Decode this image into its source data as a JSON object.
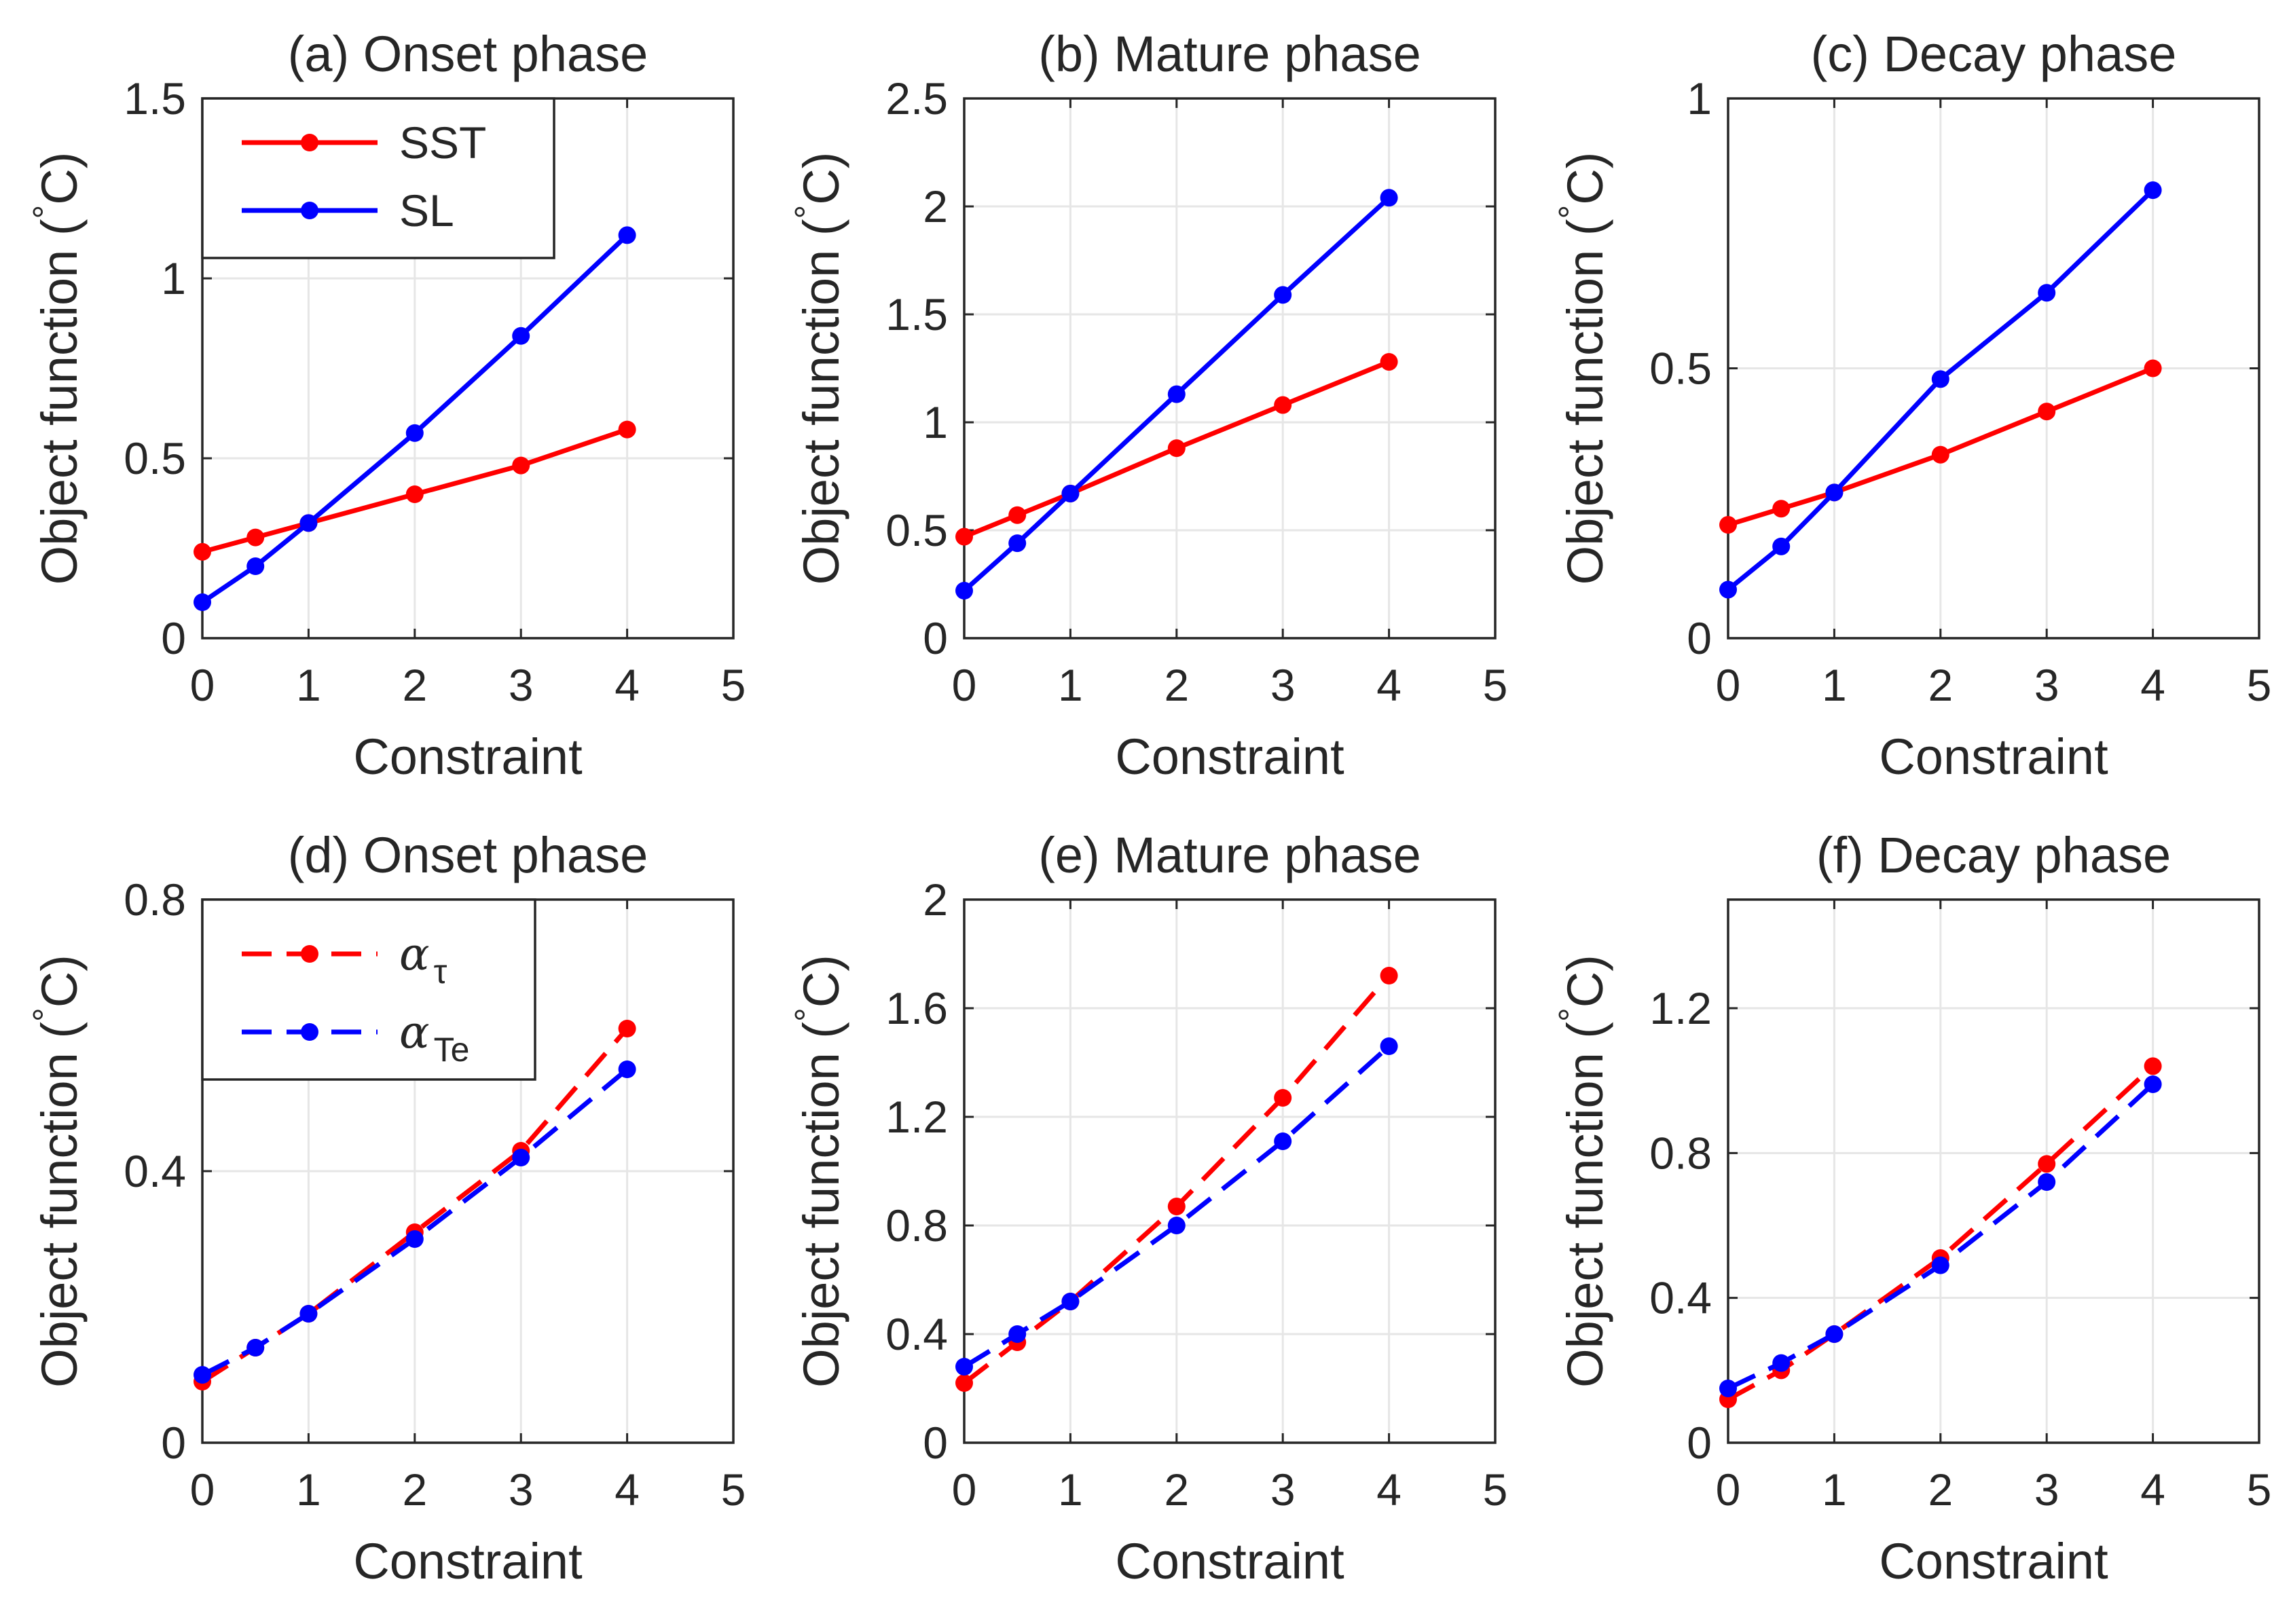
{
  "figure": {
    "colors": {
      "red": "#ff0000",
      "blue": "#0000ff",
      "axis": "#262626",
      "grid": "#e6e6e6"
    }
  },
  "chart_data": [
    {
      "type": "line",
      "title": "(a) Onset phase",
      "xlabel": "Constraint",
      "ylabel": "Object function (°C)",
      "ylabel_parts": {
        "text": "Object function (",
        "unit_sup": "°",
        "unit": "C)"
      },
      "xlim": [
        0,
        5
      ],
      "ylim": [
        0,
        1.5
      ],
      "xticks": [
        0,
        1,
        2,
        3,
        4,
        5
      ],
      "xtick_labels": [
        "0",
        "1",
        "2",
        "3",
        "4",
        "5"
      ],
      "yticks": [
        0,
        0.5,
        1,
        1.5
      ],
      "ytick_labels": [
        "0",
        "0.5",
        "1",
        "1.5"
      ],
      "x": [
        0,
        0.5,
        1,
        2,
        3,
        4
      ],
      "series": [
        {
          "name": "SST",
          "color": "#ff0000",
          "dashed": false,
          "values": [
            0.24,
            0.28,
            0.32,
            0.4,
            0.48,
            0.58
          ]
        },
        {
          "name": "SL",
          "color": "#0000ff",
          "dashed": false,
          "values": [
            0.1,
            0.2,
            0.32,
            0.57,
            0.84,
            1.12
          ]
        }
      ],
      "legend": {
        "location": "top-left",
        "entries": [
          {
            "label": "SST"
          },
          {
            "label": "SL"
          }
        ]
      }
    },
    {
      "type": "line",
      "title": "(b) Mature phase",
      "xlabel": "Constraint",
      "ylabel": "Object function (°C)",
      "ylabel_parts": {
        "text": "Object function (",
        "unit_sup": "°",
        "unit": "C)"
      },
      "xlim": [
        0,
        5
      ],
      "ylim": [
        0,
        2.5
      ],
      "xticks": [
        0,
        1,
        2,
        3,
        4,
        5
      ],
      "xtick_labels": [
        "0",
        "1",
        "2",
        "3",
        "4",
        "5"
      ],
      "yticks": [
        0,
        0.5,
        1,
        1.5,
        2,
        2.5
      ],
      "ytick_labels": [
        "0",
        "0.5",
        "1",
        "1.5",
        "2",
        "2.5"
      ],
      "x": [
        0,
        0.5,
        1,
        2,
        3,
        4
      ],
      "series": [
        {
          "name": "SST",
          "color": "#ff0000",
          "dashed": false,
          "values": [
            0.47,
            0.57,
            0.67,
            0.88,
            1.08,
            1.28
          ]
        },
        {
          "name": "SL",
          "color": "#0000ff",
          "dashed": false,
          "values": [
            0.22,
            0.44,
            0.67,
            1.13,
            1.59,
            2.04
          ]
        }
      ],
      "legend": null
    },
    {
      "type": "line",
      "title": "(c) Decay phase",
      "xlabel": "Constraint",
      "ylabel": "Object function (°C)",
      "ylabel_parts": {
        "text": "Object function (",
        "unit_sup": "°",
        "unit": "C)"
      },
      "xlim": [
        0,
        5
      ],
      "ylim": [
        0,
        1
      ],
      "xticks": [
        0,
        1,
        2,
        3,
        4,
        5
      ],
      "xtick_labels": [
        "0",
        "1",
        "2",
        "3",
        "4",
        "5"
      ],
      "yticks": [
        0,
        0.5,
        1
      ],
      "ytick_labels": [
        "0",
        "0.5",
        "1"
      ],
      "x": [
        0,
        0.5,
        1,
        2,
        3,
        4
      ],
      "series": [
        {
          "name": "SST",
          "color": "#ff0000",
          "dashed": false,
          "values": [
            0.21,
            0.24,
            0.27,
            0.34,
            0.42,
            0.5
          ]
        },
        {
          "name": "SL",
          "color": "#0000ff",
          "dashed": false,
          "values": [
            0.09,
            0.17,
            0.27,
            0.48,
            0.64,
            0.83
          ]
        }
      ],
      "legend": null
    },
    {
      "type": "line",
      "title": "(d) Onset phase",
      "xlabel": "Constraint",
      "ylabel": "Object function (°C)",
      "ylabel_parts": {
        "text": "Object function (",
        "unit_sup": "°",
        "unit": "C)"
      },
      "xlim": [
        0,
        5
      ],
      "ylim": [
        0,
        0.8
      ],
      "xticks": [
        0,
        1,
        2,
        3,
        4,
        5
      ],
      "xtick_labels": [
        "0",
        "1",
        "2",
        "3",
        "4",
        "5"
      ],
      "yticks": [
        0,
        0.4,
        0.8
      ],
      "ytick_labels": [
        "0",
        "0.4",
        "0.8"
      ],
      "x": [
        0,
        0.5,
        1,
        2,
        3,
        4
      ],
      "series": [
        {
          "name": "α_τ",
          "color": "#ff0000",
          "dashed": true,
          "values": [
            0.09,
            0.14,
            0.19,
            0.31,
            0.43,
            0.61
          ]
        },
        {
          "name": "α_Te",
          "color": "#0000ff",
          "dashed": true,
          "values": [
            0.1,
            0.14,
            0.19,
            0.3,
            0.42,
            0.55
          ]
        }
      ],
      "legend": {
        "location": "top-left",
        "entries": [
          {
            "symbol": "α",
            "subscript": "τ"
          },
          {
            "symbol": "α",
            "subscript": "Te"
          }
        ]
      }
    },
    {
      "type": "line",
      "title": "(e) Mature phase",
      "xlabel": "Constraint",
      "ylabel": "Object function (°C)",
      "ylabel_parts": {
        "text": "Object function (",
        "unit_sup": "°",
        "unit": "C)"
      },
      "xlim": [
        0,
        5
      ],
      "ylim": [
        0,
        2
      ],
      "xticks": [
        0,
        1,
        2,
        3,
        4,
        5
      ],
      "xtick_labels": [
        "0",
        "1",
        "2",
        "3",
        "4",
        "5"
      ],
      "yticks": [
        0,
        0.4,
        0.8,
        1.2,
        1.6,
        2
      ],
      "ytick_labels": [
        "0",
        "0.4",
        "0.8",
        "1.2",
        "1.6",
        "2"
      ],
      "x": [
        0,
        0.5,
        1,
        2,
        3,
        4
      ],
      "series": [
        {
          "name": "α_τ",
          "color": "#ff0000",
          "dashed": true,
          "values": [
            0.22,
            0.37,
            0.52,
            0.87,
            1.27,
            1.72
          ]
        },
        {
          "name": "α_Te",
          "color": "#0000ff",
          "dashed": true,
          "values": [
            0.28,
            0.4,
            0.52,
            0.8,
            1.11,
            1.46
          ]
        }
      ],
      "legend": null
    },
    {
      "type": "line",
      "title": "(f) Decay phase",
      "xlabel": "Constraint",
      "ylabel": "Object function (°C)",
      "ylabel_parts": {
        "text": "Object function (",
        "unit_sup": "°",
        "unit": "C)"
      },
      "xlim": [
        0,
        5
      ],
      "ylim": [
        0,
        1.5
      ],
      "xticks": [
        0,
        1,
        2,
        3,
        4,
        5
      ],
      "xtick_labels": [
        "0",
        "1",
        "2",
        "3",
        "4",
        "5"
      ],
      "yticks": [
        0,
        0.4,
        0.8,
        1.2
      ],
      "ytick_labels": [
        "0",
        "0.4",
        "0.8",
        "1.2"
      ],
      "x": [
        0,
        0.5,
        1,
        2,
        3,
        4
      ],
      "series": [
        {
          "name": "α_τ",
          "color": "#ff0000",
          "dashed": true,
          "values": [
            0.12,
            0.2,
            0.3,
            0.51,
            0.77,
            1.04
          ]
        },
        {
          "name": "α_Te",
          "color": "#0000ff",
          "dashed": true,
          "values": [
            0.15,
            0.22,
            0.3,
            0.49,
            0.72,
            0.99
          ]
        }
      ],
      "legend": null
    }
  ]
}
